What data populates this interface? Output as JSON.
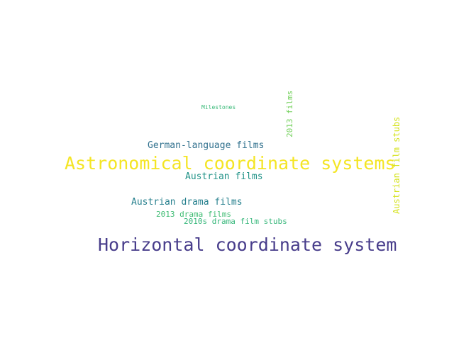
{
  "words": [
    {
      "text": "Horizontal coordinate system",
      "color": "#483d8b"
    },
    {
      "text": "Astronomical coordinate systems",
      "color": "#f4e524"
    },
    {
      "text": "German-language films",
      "color": "#31718e"
    },
    {
      "text": "Austrian films",
      "color": "#229388"
    },
    {
      "text": "Austrian drama films",
      "color": "#27808e"
    },
    {
      "text": "2013 drama films",
      "color": "#3fbc73"
    },
    {
      "text": "2010s drama film stubs",
      "color": "#34b679"
    },
    {
      "text": "Milestones",
      "color": "#38b977"
    },
    {
      "text": "2013 films",
      "color": "#6fcf57"
    },
    {
      "text": "Austrian film stubs",
      "color": "#d4e21a"
    }
  ]
}
